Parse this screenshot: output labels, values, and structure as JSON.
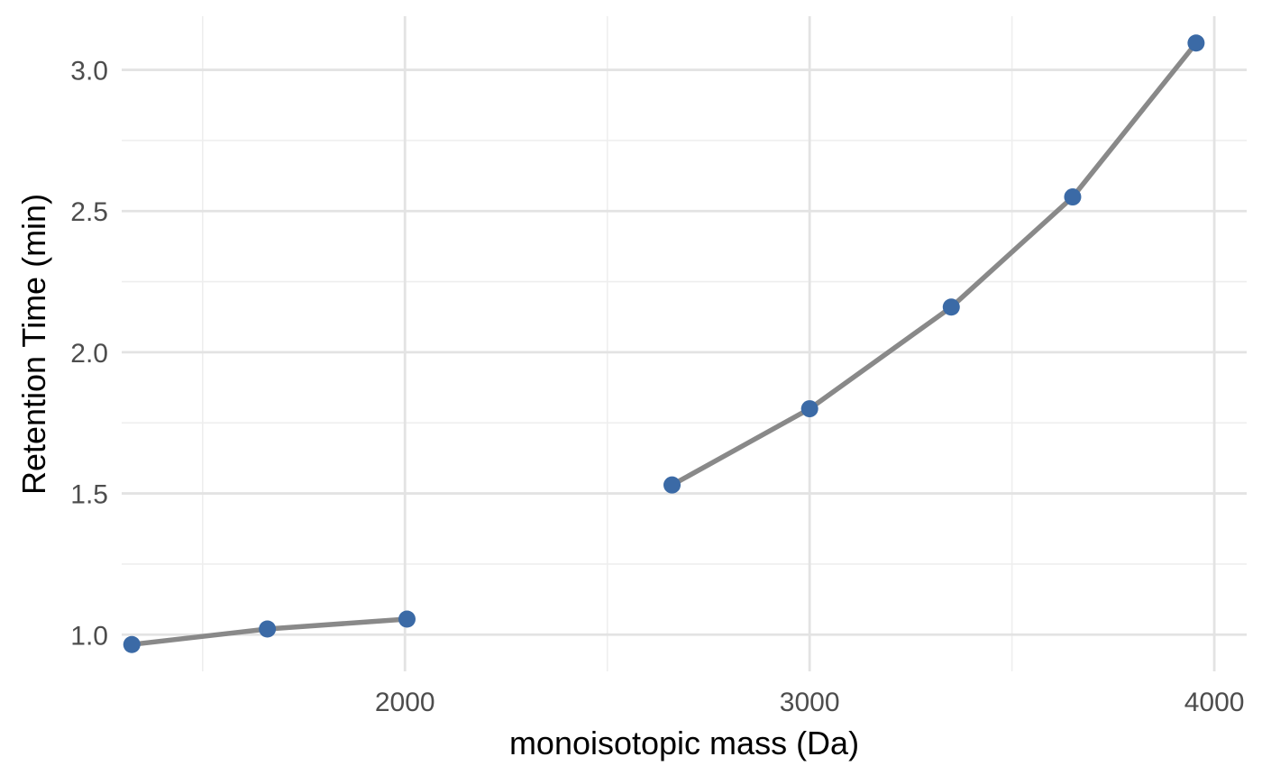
{
  "chart_data": {
    "type": "line",
    "title": "",
    "xlabel": "monoisotopic mass (Da)",
    "ylabel": "Retention Time (min)",
    "xlim": [
      1300,
      4080
    ],
    "ylim": [
      0.87,
      3.19
    ],
    "x_ticks": [
      2000,
      3000,
      4000
    ],
    "x_tick_labels": [
      "2000",
      "3000",
      "4000"
    ],
    "x_minor_ticks": [
      1500,
      2500,
      3500
    ],
    "y_ticks": [
      1.0,
      1.5,
      2.0,
      2.5,
      3.0
    ],
    "y_tick_labels": [
      "1.0",
      "1.5",
      "2.0",
      "2.5",
      "3.0"
    ],
    "y_minor_ticks": [
      1.25,
      1.75,
      2.25,
      2.75
    ],
    "grid": true,
    "legend": "none",
    "series": [
      {
        "x": [
          1325,
          1660,
          2005
        ],
        "y": [
          0.965,
          1.02,
          1.055
        ]
      },
      {
        "x": [
          2660,
          3000,
          3350,
          3650,
          3955
        ],
        "y": [
          1.53,
          1.8,
          2.16,
          2.55,
          3.095
        ]
      }
    ],
    "colors": {
      "point": "#3b6aa6",
      "line": "#898989",
      "grid_major": "#e3e3e3",
      "grid_minor": "#eeeeee",
      "tick_text": "#4d4d4d",
      "axis_title": "#000000"
    }
  }
}
